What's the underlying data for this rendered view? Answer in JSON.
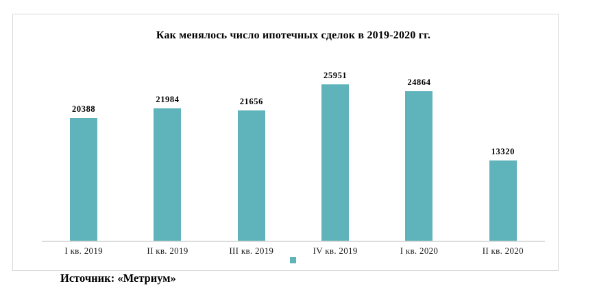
{
  "chart_data": {
    "type": "bar",
    "title": "Как менялось число ипотечных сделок в 2019-2020 гг.",
    "categories": [
      "I кв. 2019",
      "II кв. 2019",
      "III кв. 2019",
      "IV кв. 2019",
      "I кв. 2020",
      "II кв. 2020"
    ],
    "values": [
      20388,
      21984,
      21656,
      25951,
      24864,
      13320
    ],
    "bar_color": "#5fb3ba",
    "grid": false,
    "y_axis_visible": false,
    "data_labels": "above bars, bold",
    "legend": "single unlabeled series marker centered below x-axis"
  },
  "source_note": "Источник: «Метриум»"
}
